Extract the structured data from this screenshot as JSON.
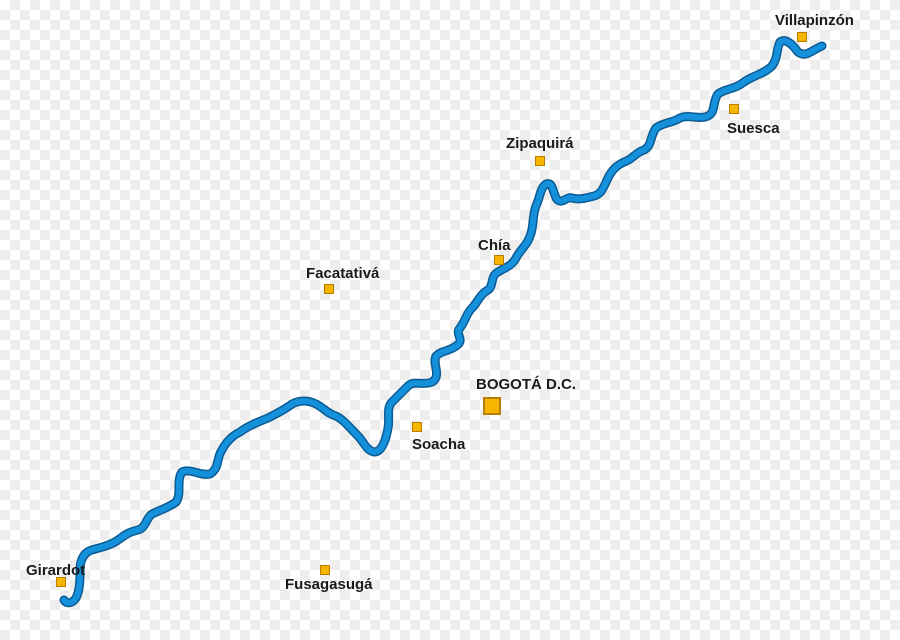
{
  "river": {
    "color": "#1591dc",
    "outline_color": "#0a5a93"
  },
  "places": [
    {
      "id": "villapinzon",
      "name": "Villapinzón",
      "capital": false
    },
    {
      "id": "suesca",
      "name": "Suesca",
      "capital": false
    },
    {
      "id": "zipaquira",
      "name": "Zipaquirá",
      "capital": false
    },
    {
      "id": "chia",
      "name": "Chía",
      "capital": false
    },
    {
      "id": "facatativa",
      "name": "Facatativá",
      "capital": false
    },
    {
      "id": "bogota",
      "name": "BOGOTÁ D.C.",
      "capital": true
    },
    {
      "id": "soacha",
      "name": "Soacha",
      "capital": false
    },
    {
      "id": "girardot",
      "name": "Girardot",
      "capital": false
    },
    {
      "id": "fusagasuga",
      "name": "Fusagasugá",
      "capital": false
    }
  ],
  "marker_color": "#f7b500"
}
